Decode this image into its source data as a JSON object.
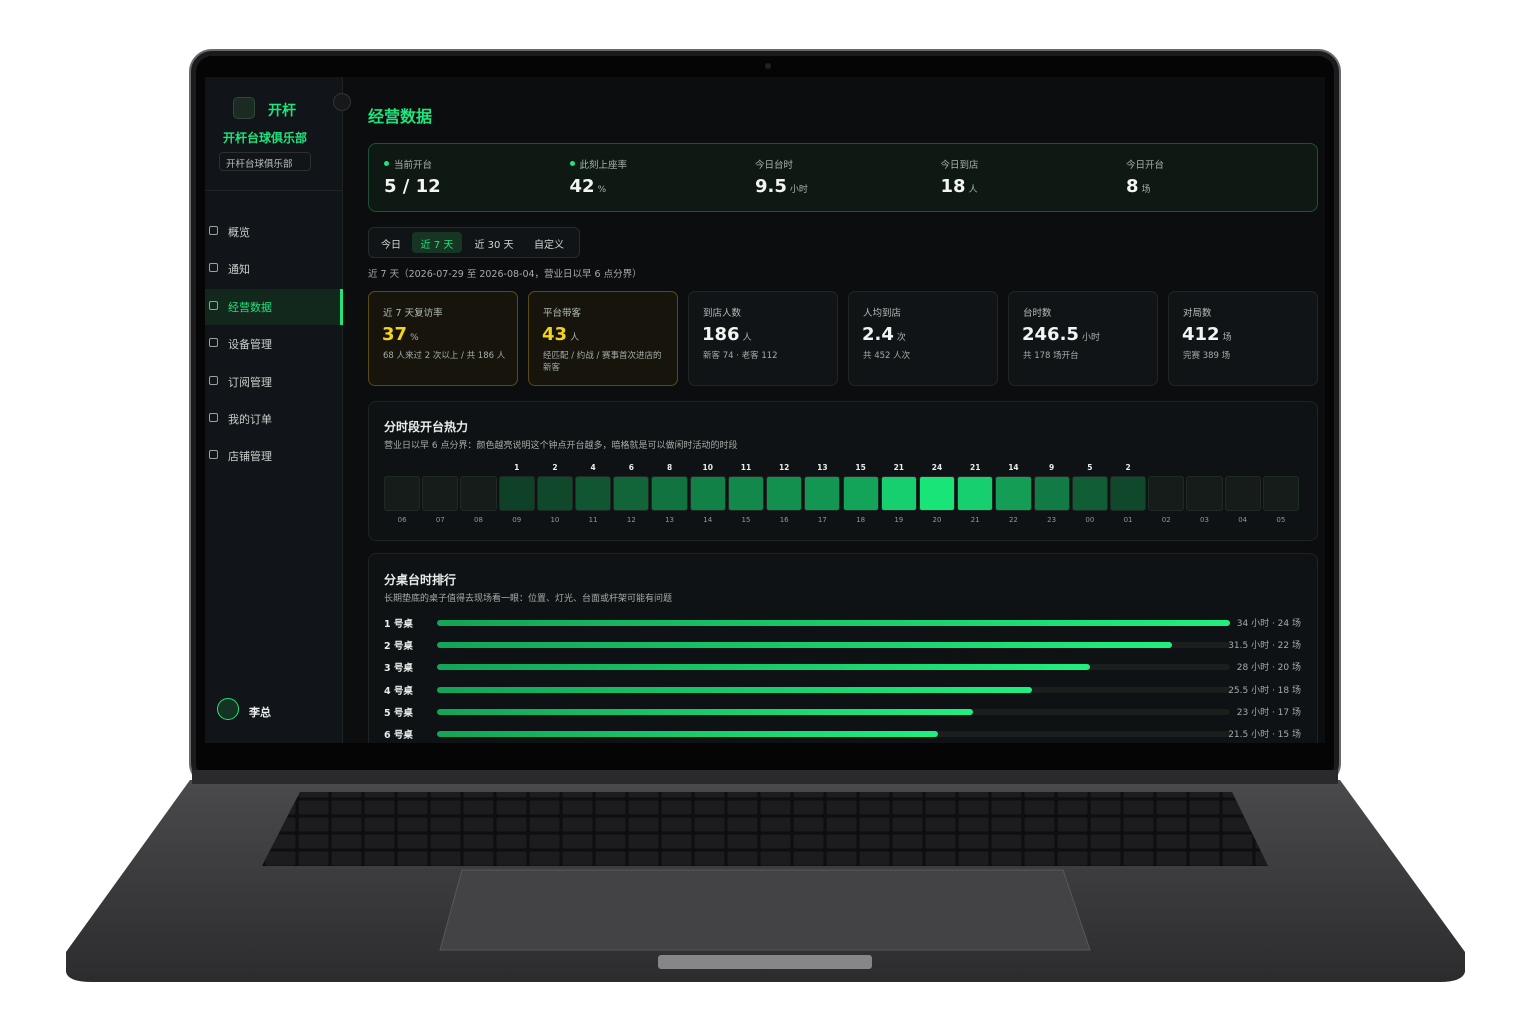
{
  "sidebar": {
    "brand": "开杆",
    "club": "开杆台球俱乐部",
    "selector": "开杆台球俱乐部",
    "nav": [
      "概览",
      "通知",
      "经营数据",
      "设备管理",
      "订阅管理",
      "我的订单",
      "店铺管理"
    ],
    "active": 2,
    "user": "李总"
  },
  "main": {
    "title": "经营数据",
    "live": [
      {
        "label": "当前开台",
        "value": "5 / 12",
        "dot": true
      },
      {
        "label": "此刻上座率",
        "value": 42,
        "unit": "%",
        "dot": true
      },
      {
        "label": "今日台时",
        "value": 9.5,
        "unit": "小时"
      },
      {
        "label": "今日到店",
        "value": 18,
        "unit": "人"
      },
      {
        "label": "今日开台",
        "value": 8,
        "unit": "场"
      }
    ],
    "tabs": [
      "今日",
      "近 7 天",
      "近 30 天",
      "自定义"
    ],
    "active_tab": 1,
    "range_note": "近 7 天（2026-07-29 至 2026-08-04，营业日以早 6 点分界）",
    "kpis": [
      {
        "label": "近 7 天复访率",
        "value": 37,
        "unit": "%",
        "note": "68 人来过 2 次以上 / 共 186 人",
        "highlight": true
      },
      {
        "label": "平台带客",
        "value": 43,
        "unit": "人",
        "note": "经匹配 / 约战 / 赛事首次进店的新客",
        "highlight": true
      },
      {
        "label": "到店人数",
        "value": 186,
        "unit": "人",
        "note": "新客 74 · 老客 112"
      },
      {
        "label": "人均到店",
        "value": 2.4,
        "unit": "次",
        "note": "共 452 人次"
      },
      {
        "label": "台时数",
        "value": 246.5,
        "unit": "小时",
        "note": "共 178 场开台"
      },
      {
        "label": "对局数",
        "value": 412,
        "unit": "场",
        "note": "完赛 389 场"
      }
    ],
    "heatmap": {
      "title": "分时段开台热力",
      "subtitle": "营业日以早 6 点分界：颜色越亮说明这个钟点开台越多，暗格就是可以做闲时活动的时段",
      "hours": [
        "06",
        "07",
        "08",
        "09",
        "10",
        "11",
        "12",
        "13",
        "14",
        "15",
        "16",
        "17",
        "18",
        "19",
        "20",
        "21",
        "22",
        "23",
        "00",
        "01",
        "02",
        "03",
        "04",
        "05"
      ],
      "counts": [
        null,
        null,
        null,
        1,
        2,
        4,
        6,
        8,
        10,
        11,
        12,
        13,
        15,
        21,
        24,
        21,
        14,
        9,
        5,
        2,
        null,
        null,
        null,
        null
      ]
    },
    "ranking": {
      "title": "分桌台时排行",
      "subtitle": "长期垫底的桌子值得去现场看一眼：位置、灯光、台面或杆架可能有问题",
      "rows": [
        {
          "name": "1 号桌",
          "hours": 34,
          "label": "34 小时 · 24 场"
        },
        {
          "name": "2 号桌",
          "hours": 31.5,
          "label": "31.5 小时 · 22 场"
        },
        {
          "name": "3 号桌",
          "hours": 28,
          "label": "28 小时 · 20 场"
        },
        {
          "name": "4 号桌",
          "hours": 25.5,
          "label": "25.5 小时 · 18 场"
        },
        {
          "name": "5 号桌",
          "hours": 23,
          "label": "23 小时 · 17 场"
        },
        {
          "name": "6 号桌",
          "hours": 21.5,
          "label": "21.5 小时 · 15 场"
        }
      ]
    }
  }
}
